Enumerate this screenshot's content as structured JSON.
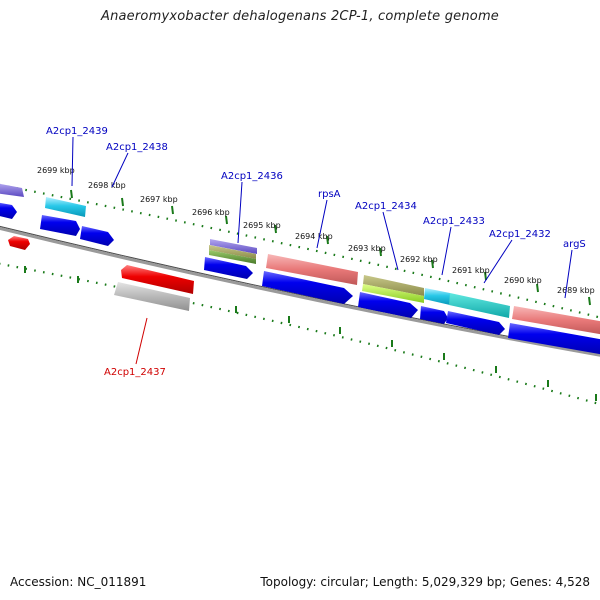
{
  "title": "Anaeromyxobacter dehalogenans 2CP-1, complete genome",
  "footer": {
    "accession": "Accession: NC_011891",
    "summary": "Topology: circular; Length: 5,029,329 bp; Genes: 4,528"
  },
  "colors": {
    "backbone": "#808080",
    "tick": "#1a7a1a",
    "blue_label": "#0000c0",
    "red_label": "#d00000"
  },
  "scale_labels": [
    "2699 kbp",
    "2698 kbp",
    "2697 kbp",
    "2696 kbp",
    "2695 kbp",
    "2694 kbp",
    "2693 kbp",
    "2692 kbp",
    "2691 kbp",
    "2690 kbp",
    "2689 kbp"
  ],
  "gene_labels": [
    {
      "text": "A2cp1_2439",
      "color": "blue"
    },
    {
      "text": "A2cp1_2438",
      "color": "blue"
    },
    {
      "text": "A2cp1_2436",
      "color": "blue"
    },
    {
      "text": "rpsA",
      "color": "blue"
    },
    {
      "text": "A2cp1_2434",
      "color": "blue"
    },
    {
      "text": "A2cp1_2433",
      "color": "blue"
    },
    {
      "text": "A2cp1_2432",
      "color": "blue"
    },
    {
      "text": "argS",
      "color": "blue"
    },
    {
      "text": "A2cp1_2437",
      "color": "red"
    }
  ]
}
